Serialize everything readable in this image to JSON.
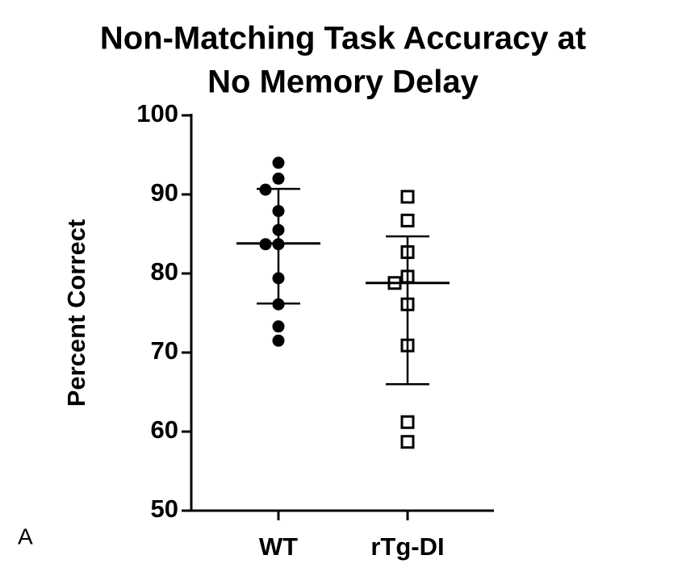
{
  "chart_data": {
    "type": "strip",
    "title": [
      "Non-Matching Task Accuracy at",
      "No Memory Delay"
    ],
    "panel_label": "A",
    "y_label": "Percent Correct",
    "categories": [
      "WT",
      "rTg-DI"
    ],
    "series": [
      {
        "marker": "filled-circle",
        "color": "#000000",
        "values": [
          94.0,
          92.0,
          90.6,
          87.9,
          85.5,
          83.7,
          83.7,
          79.4,
          76.1,
          73.3,
          71.5
        ],
        "mean": 83.8,
        "err_upper": 6.9,
        "err_lower": 7.6
      },
      {
        "marker": "open-square",
        "color": "#000000",
        "values": [
          89.7,
          86.7,
          82.7,
          79.6,
          78.8,
          76.1,
          70.9,
          61.2,
          58.7
        ],
        "mean": 78.8,
        "err_upper": 5.9,
        "err_lower": 12.8
      }
    ],
    "ylim": [
      50,
      100
    ],
    "yticks": [
      50,
      60,
      70,
      80,
      90,
      100
    ]
  }
}
